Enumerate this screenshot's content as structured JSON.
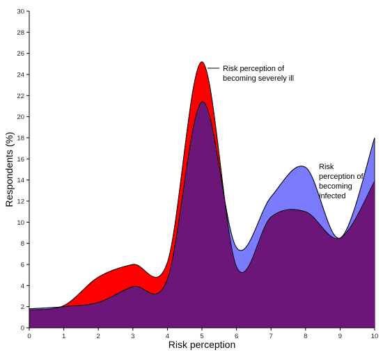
{
  "chart_data": {
    "type": "area",
    "title": "",
    "xlabel": "Risk perception",
    "ylabel": "Respondents (%)",
    "xlim": [
      0,
      10
    ],
    "ylim": [
      0,
      30
    ],
    "x_ticks": [
      0,
      1,
      2,
      3,
      4,
      5,
      6,
      7,
      8,
      9,
      10
    ],
    "y_ticks": [
      0,
      2,
      4,
      6,
      8,
      10,
      12,
      14,
      16,
      18,
      20,
      22,
      24,
      26,
      28,
      30
    ],
    "grid": false,
    "x": [
      0,
      1,
      2,
      3,
      4,
      5,
      6,
      7,
      8,
      9,
      10
    ],
    "series": [
      {
        "name": "Risk perception of becoming severely ill",
        "values": [
          1.7,
          2.1,
          4.8,
          6.0,
          6.2,
          25.2,
          5.8,
          10.5,
          11.0,
          8.5,
          13.9
        ],
        "color": "#ff0000"
      },
      {
        "name": "Risk perception of becoming infected",
        "values": [
          1.8,
          2.0,
          2.4,
          3.9,
          4.6,
          21.4,
          7.6,
          12.4,
          15.2,
          8.5,
          18.0
        ],
        "color": "#7b7bff"
      }
    ],
    "overlap_color": "#6b1678",
    "annotations": [
      {
        "series": 0,
        "lines": [
          "Risk perception of",
          "becoming severely ill"
        ]
      },
      {
        "series": 1,
        "lines": [
          "Risk",
          "perception of",
          "becoming",
          "infected"
        ]
      }
    ]
  }
}
